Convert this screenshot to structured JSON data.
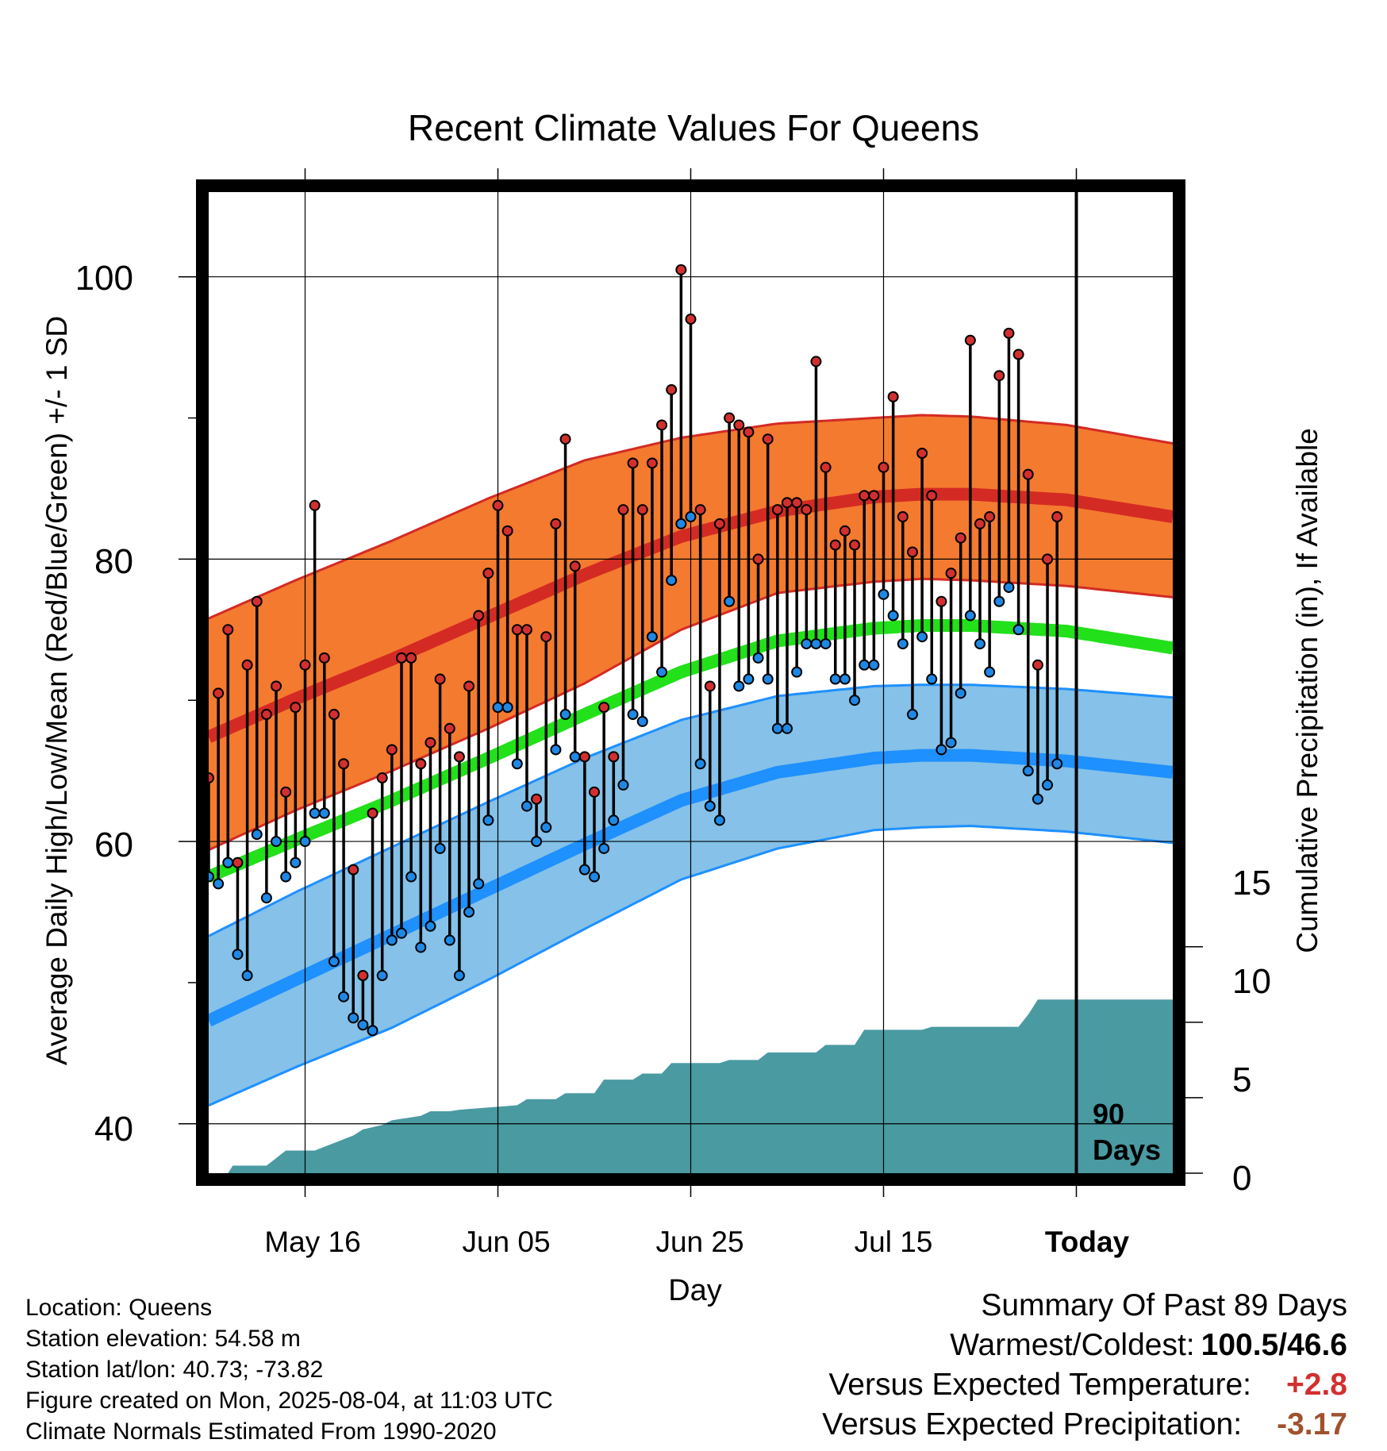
{
  "chart_data": {
    "type": "line",
    "title": "Recent Climate Values For Queens",
    "xlabel": "Day",
    "ylabel": "Average Daily High/Low/Mean (Red/Blue/Green) +/- 1 SD",
    "ylabel_right": "Cumulative Precipitation (in), If Available",
    "x_ticks": [
      "May 16",
      "Jun 05",
      "Jun 25",
      "Jul 15",
      "Today"
    ],
    "y_ticks": [
      "40",
      "60",
      "80",
      "100"
    ],
    "y_right_ticks": [
      "0",
      "5",
      "10",
      "15"
    ],
    "ylim": [
      36.5,
      106
    ],
    "ylim_right": [
      0,
      65
    ],
    "x_days_range": [
      1,
      101
    ],
    "today_day": 91,
    "today_label": [
      "90",
      "Days"
    ],
    "normals_days": [
      1,
      10,
      20,
      30,
      40,
      50,
      60,
      70,
      75,
      80,
      90,
      101
    ],
    "normal_high": [
      67.4,
      70.1,
      72.9,
      75.9,
      78.9,
      81.6,
      83.4,
      84.4,
      84.6,
      84.6,
      84.2,
      83.0
    ],
    "high_sd_upper": [
      75.8,
      78.5,
      81.3,
      84.3,
      87.0,
      88.6,
      89.6,
      90.0,
      90.2,
      90.1,
      89.5,
      88.2
    ],
    "high_sd_lower": [
      59.4,
      62.2,
      65.0,
      68.0,
      71.2,
      75.0,
      77.6,
      78.4,
      78.6,
      78.5,
      78.1,
      77.3
    ],
    "normal_mean": [
      57.5,
      60.1,
      62.9,
      65.9,
      69.0,
      72.0,
      74.2,
      75.1,
      75.3,
      75.3,
      74.9,
      73.7
    ],
    "normal_low": [
      47.3,
      50.2,
      53.4,
      56.6,
      59.8,
      62.9,
      64.9,
      65.9,
      66.1,
      66.1,
      65.7,
      64.9
    ],
    "low_sd_upper": [
      53.3,
      56.4,
      59.6,
      62.8,
      65.9,
      68.6,
      70.3,
      71.0,
      71.1,
      71.1,
      70.8,
      70.2
    ],
    "low_sd_lower": [
      41.3,
      44.0,
      46.8,
      50.2,
      53.8,
      57.3,
      59.5,
      60.8,
      61.0,
      61.1,
      60.7,
      59.9
    ],
    "series": [
      {
        "name": "Daily High",
        "values": [
          64.5,
          70.5,
          75.0,
          58.5,
          72.5,
          77.0,
          69.0,
          71.0,
          63.5,
          69.5,
          72.5,
          83.8,
          73.0,
          69.0,
          65.5,
          58.0,
          50.5,
          62.0,
          64.5,
          66.5,
          73.0,
          73.0,
          65.5,
          67.0,
          71.5,
          68.0,
          66.0,
          71.0,
          76.0,
          79.0,
          83.8,
          82.0,
          75.0,
          75.0,
          63.0,
          74.5,
          82.5,
          88.5,
          79.5,
          66.0,
          63.5,
          69.5,
          66.0,
          83.5,
          86.8,
          83.5,
          86.8,
          89.5,
          92.0,
          100.5,
          97.0,
          83.5,
          71.0,
          82.5,
          90.0,
          89.5,
          89.0,
          80.0,
          88.5,
          83.5,
          84.0,
          84.0,
          83.5,
          94.0,
          86.5,
          81.0,
          82.0,
          81.0,
          84.5,
          84.5,
          86.5,
          91.5,
          83.0,
          80.5,
          87.5,
          84.5,
          77.0,
          79.0,
          81.5,
          95.5,
          82.5,
          83.0,
          93.0,
          96.0,
          94.5,
          86.0,
          72.5,
          80.0,
          83.0
        ]
      },
      {
        "name": "Daily Low",
        "values": [
          57.5,
          57.0,
          58.5,
          52.0,
          50.5,
          60.5,
          56.0,
          60.0,
          57.5,
          58.5,
          60.0,
          62.0,
          62.0,
          51.5,
          49.0,
          47.5,
          47.0,
          46.6,
          50.5,
          53.0,
          53.5,
          57.5,
          52.5,
          54.0,
          59.5,
          53.0,
          50.5,
          55.0,
          57.0,
          61.5,
          69.5,
          69.5,
          65.5,
          62.5,
          60.0,
          61.0,
          66.5,
          69.0,
          66.0,
          58.0,
          57.5,
          59.5,
          61.5,
          64.0,
          69.0,
          68.5,
          74.5,
          72.0,
          78.5,
          82.5,
          83.0,
          65.5,
          62.5,
          61.5,
          77.0,
          71.0,
          71.5,
          73.0,
          71.5,
          68.0,
          68.0,
          72.0,
          74.0,
          74.0,
          74.0,
          71.5,
          71.5,
          70.0,
          72.5,
          72.5,
          77.5,
          76.0,
          74.0,
          69.0,
          74.5,
          71.5,
          66.5,
          67.0,
          70.5,
          76.0,
          74.0,
          72.0,
          77.0,
          78.0,
          75.0,
          65.0,
          63.0,
          64.0,
          65.5
        ]
      },
      {
        "name": "Cumulative Precipitation",
        "days": [
          1,
          3,
          3.5,
          7,
          8,
          9,
          12,
          16,
          17,
          19,
          20,
          23,
          24,
          26,
          27,
          33,
          34,
          37,
          38,
          41,
          42,
          45,
          46,
          48,
          49,
          54,
          55,
          58,
          59,
          64,
          65,
          68,
          69,
          75,
          76,
          85,
          86,
          87,
          101
        ],
        "values": [
          0,
          0,
          0.5,
          0.5,
          1.0,
          1.5,
          1.5,
          2.5,
          2.9,
          3.2,
          3.5,
          3.8,
          4.1,
          4.1,
          4.2,
          4.5,
          4.9,
          4.9,
          5.3,
          5.3,
          6.2,
          6.2,
          6.6,
          6.6,
          7.3,
          7.3,
          7.5,
          7.5,
          8.0,
          8.0,
          8.5,
          8.5,
          9.5,
          9.5,
          9.7,
          9.7,
          10.5,
          11.5,
          11.5
        ]
      }
    ]
  },
  "info": {
    "location": "Location: Queens",
    "elevation": "Station elevation: 54.58 m",
    "latlon": "Station lat/lon: 40.73; -73.82",
    "created": "Figure created on Mon, 2025-08-04, at 11:03 UTC",
    "normals": "Climate Normals Estimated From 1990-2020"
  },
  "summary": {
    "title": "Summary Of Past 89 Days",
    "warm_cold_label": "Warmest/Coldest:",
    "warm_cold_value": "100.5/46.6",
    "temp_label": "Versus Expected Temperature:",
    "temp_value": "+2.8",
    "precip_label": "Versus Expected Precipitation:",
    "precip_value": "-3.17"
  },
  "colors": {
    "high_band": "#f47a2f",
    "high_line": "#d42a24",
    "mean_line": "#22e01a",
    "low_band": "#85c1e8",
    "low_line": "#1e90ff",
    "precip_fill": "#4a9aa2",
    "marker_high": "#d32f2f",
    "marker_low": "#1e88e5"
  }
}
